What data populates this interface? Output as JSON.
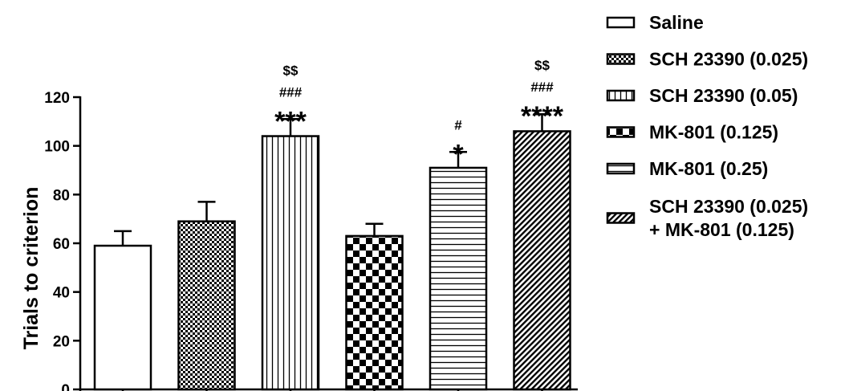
{
  "chart_data": {
    "type": "bar",
    "ylabel": "Trials to criterion",
    "ylim": [
      0,
      120
    ],
    "yticks": [
      "0",
      "20",
      "40",
      "60",
      "80",
      "100",
      "120"
    ],
    "series": [
      {
        "name": "Saline",
        "value": 59,
        "error": 6,
        "pattern": "none",
        "stars": "",
        "hash": "",
        "dollar": ""
      },
      {
        "name": "SCH 23390 (0.025)",
        "value": 69,
        "error": 8,
        "pattern": "fine-check",
        "stars": "",
        "hash": "",
        "dollar": ""
      },
      {
        "name": "SCH 23390 (0.05)",
        "value": 104,
        "error": 7,
        "pattern": "vertical-lines",
        "stars": "***",
        "hash": "###",
        "dollar": "$$"
      },
      {
        "name": "MK-801 (0.125)",
        "value": 63,
        "error": 5,
        "pattern": "checker",
        "stars": "",
        "hash": "",
        "dollar": ""
      },
      {
        "name": "MK-801 (0.25)",
        "value": 91,
        "error": 6.5,
        "pattern": "horizontal-lines",
        "stars": "*",
        "hash": "#",
        "dollar": ""
      },
      {
        "name": "SCH 23390 (0.025)\n+ MK-801 (0.125)",
        "value": 106,
        "error": 7,
        "pattern": "diagonal-lines",
        "stars": "****",
        "hash": "###",
        "dollar": "$$"
      }
    ],
    "legend": {
      "placement": "right",
      "entries": [
        {
          "lines": [
            "Saline"
          ]
        },
        {
          "lines": [
            "SCH 23390 (0.025)"
          ]
        },
        {
          "lines": [
            "SCH 23390 (0.05)"
          ]
        },
        {
          "lines": [
            "MK-801 (0.125)"
          ]
        },
        {
          "lines": [
            "MK-801 (0.25)"
          ]
        },
        {
          "lines": [
            "SCH 23390 (0.025)",
            "+ MK-801 (0.125)"
          ]
        }
      ]
    },
    "colors": {
      "stroke": "#000000",
      "fill": "#ffffff"
    }
  }
}
